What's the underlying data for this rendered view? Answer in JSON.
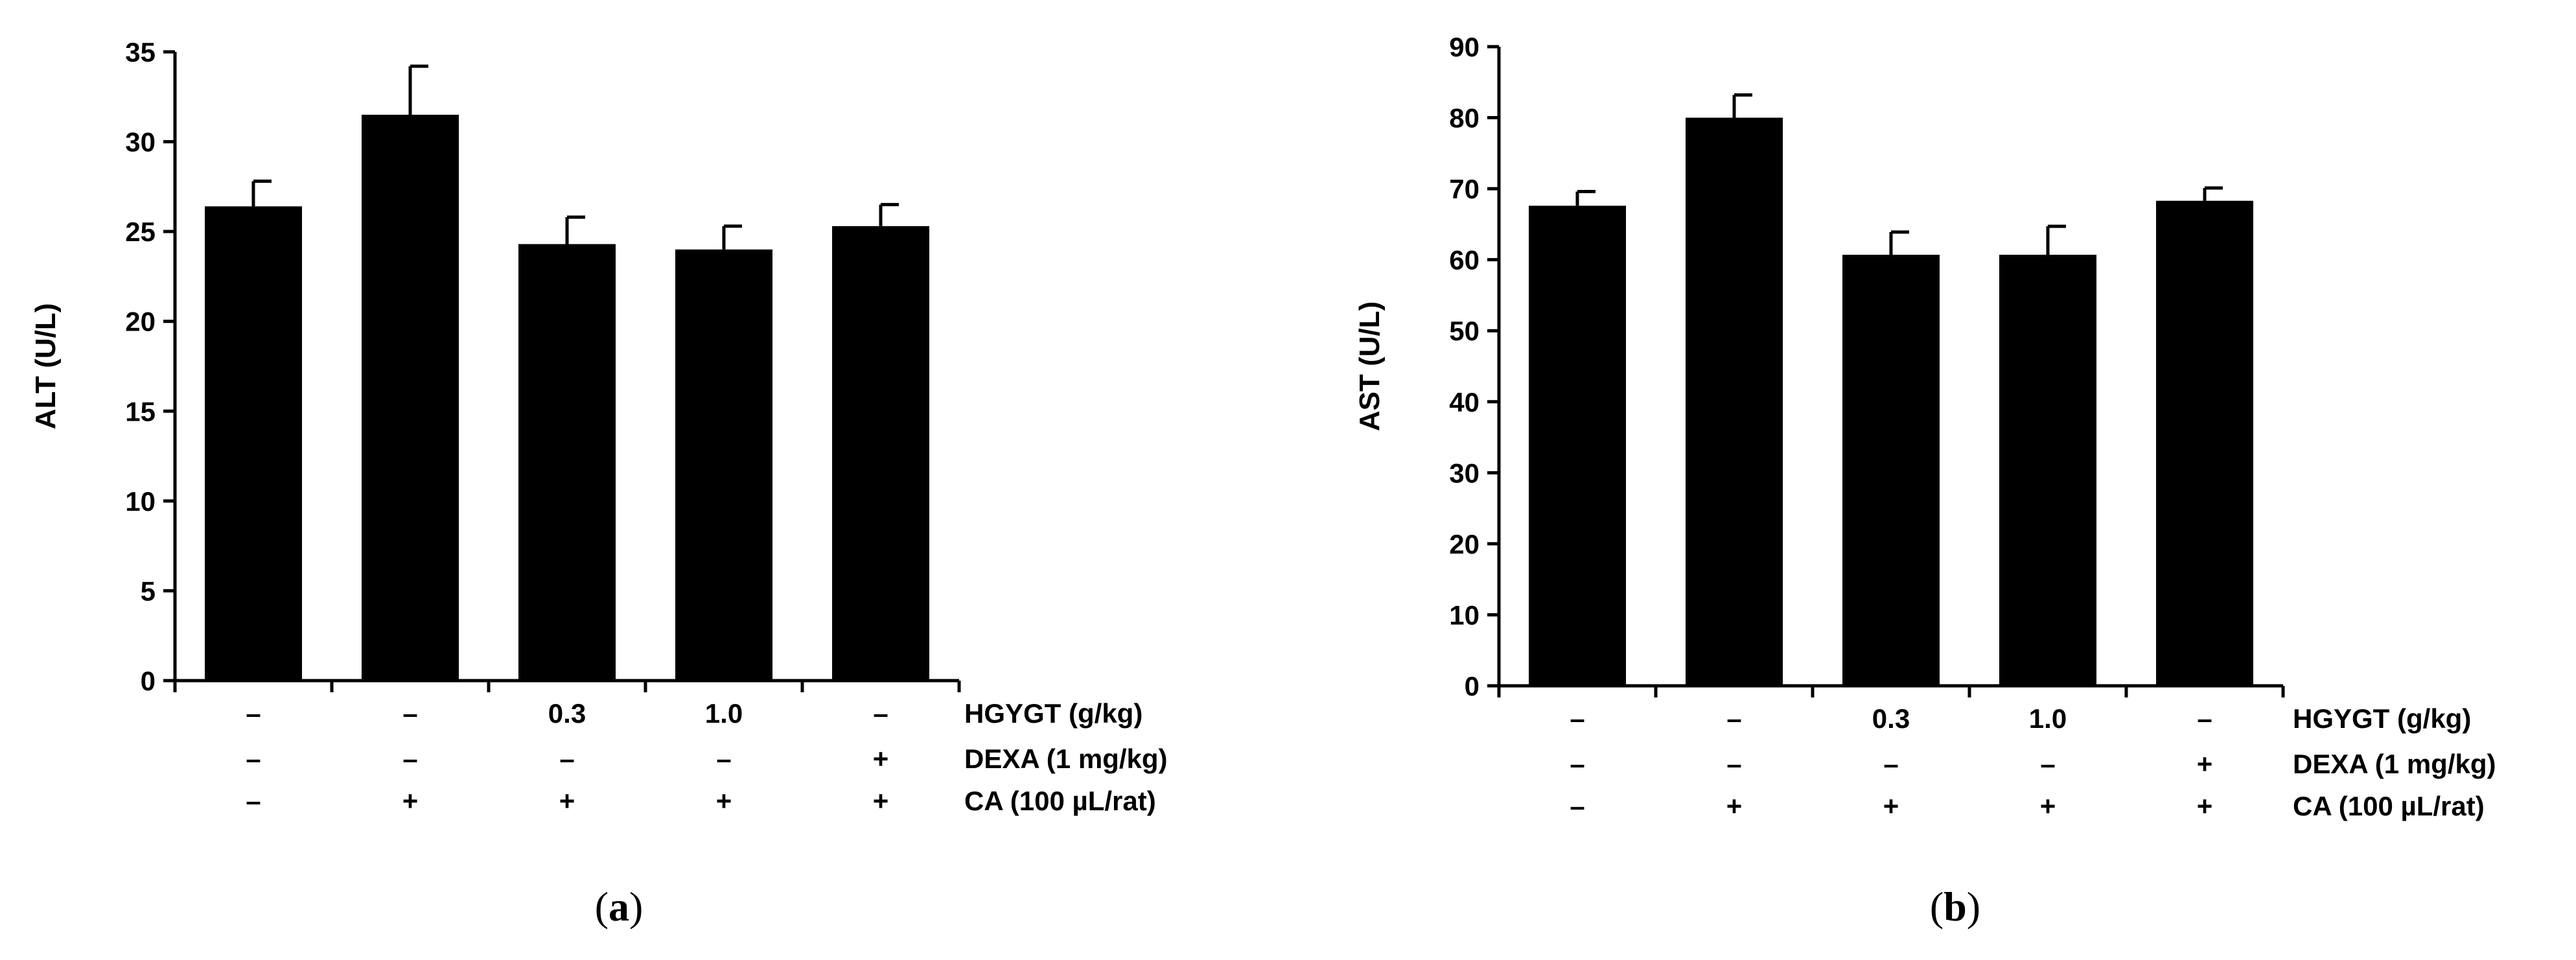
{
  "chart_data": [
    {
      "type": "bar",
      "panel": "a",
      "panel_label": "(a)",
      "panel_letter": "a",
      "ylabel": "ALT (U/L)",
      "ylim": [
        0,
        35
      ],
      "yticks": [
        0,
        5,
        10,
        15,
        20,
        25,
        30,
        35
      ],
      "values": [
        26.4,
        31.5,
        24.3,
        24.0,
        25.3
      ],
      "errors": [
        1.4,
        2.7,
        1.5,
        1.3,
        1.2
      ],
      "conditions": [
        {
          "name": "HGYGT (g/kg)",
          "values": [
            "–",
            "–",
            "0.3",
            "1.0",
            "–"
          ]
        },
        {
          "name": "DEXA (1 mg/kg)",
          "values": [
            "–",
            "–",
            "–",
            "–",
            "+"
          ]
        },
        {
          "name": "CA (100 µL/rat)",
          "values": [
            "–",
            "+",
            "+",
            "+",
            "+"
          ]
        }
      ]
    },
    {
      "type": "bar",
      "panel": "b",
      "panel_label": "(b)",
      "panel_letter": "b",
      "ylabel": "AST (U/L)",
      "ylim": [
        0,
        90
      ],
      "yticks": [
        0,
        10,
        20,
        30,
        40,
        50,
        60,
        70,
        80,
        90
      ],
      "values": [
        67.6,
        80.0,
        60.7,
        60.7,
        68.3
      ],
      "errors": [
        2.0,
        3.2,
        3.2,
        4.0,
        1.8
      ],
      "conditions": [
        {
          "name": "HGYGT (g/kg)",
          "values": [
            "–",
            "–",
            "0.3",
            "1.0",
            "–"
          ]
        },
        {
          "name": "DEXA (1 mg/kg)",
          "values": [
            "–",
            "–",
            "–",
            "–",
            "+"
          ]
        },
        {
          "name": "CA (100 µL/rat)",
          "values": [
            "–",
            "+",
            "+",
            "+",
            "+"
          ]
        }
      ]
    }
  ]
}
